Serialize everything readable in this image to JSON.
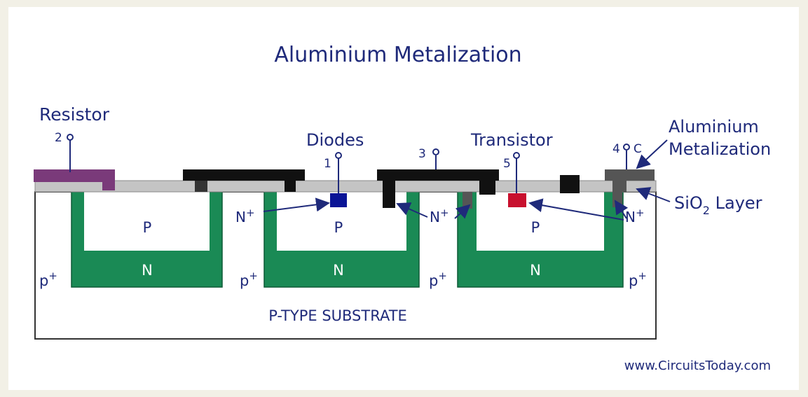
{
  "title": "Aluminium Metalization",
  "labels": {
    "resistor": "Resistor",
    "diodes": "Diodes",
    "transistor": "Transistor",
    "aluminium_metalization_line1": "Aluminium",
    "aluminium_metalization_line2": "Metalization",
    "sio2_prefix": "SiO",
    "sio2_sub": "2",
    "sio2_suffix": " Layer",
    "substrate": "P-TYPE SUBSTRATE",
    "terminal_2": "2",
    "terminal_1": "1",
    "terminal_3": "3",
    "terminal_5": "5",
    "terminal_4": "4",
    "terminal_c": "C",
    "n_plus": "N",
    "plus": "+",
    "p_region": "P",
    "n_region": "N",
    "p_plus_base": "p",
    "watermark": "www.CircuitsToday.com"
  },
  "colors": {
    "background": "#f2f0e6",
    "label": "#1f2a7a",
    "n_well": "#1a8a55",
    "oxide": "#c4c4c4",
    "metal_black": "#111111",
    "metal_grey": "#555555",
    "resistor_metal": "#7a3a7a",
    "diode_n_plus": "#0a1496",
    "transistor_n_plus": "#c8102e"
  }
}
